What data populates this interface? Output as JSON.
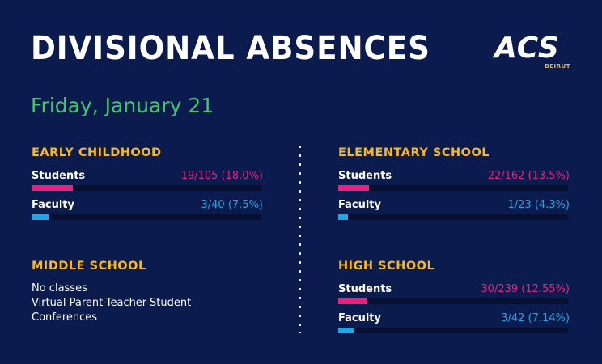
{
  "header": {
    "title": "DIVISIONAL ABSENCES",
    "logo_text": "ACS",
    "logo_subtext": "BEIRUT",
    "date": "Friday, January 21"
  },
  "colors": {
    "background": "#0c1b4d",
    "section_title": "#f9b81c",
    "date": "#3ec96e",
    "students": "#ee1e7c",
    "faculty": "#1ba8e8",
    "track": "#07102e"
  },
  "sections": {
    "early_childhood": {
      "title": "EARLY CHILDHOOD",
      "students": {
        "label": "Students",
        "value": "19/105 (18.0%)",
        "percent": 18.0
      },
      "faculty": {
        "label": "Faculty",
        "value": "3/40 (7.5%)",
        "percent": 7.5
      }
    },
    "elementary": {
      "title": "ELEMENTARY SCHOOL",
      "students": {
        "label": "Students",
        "value": "22/162 (13.5%)",
        "percent": 13.5
      },
      "faculty": {
        "label": "Faculty",
        "value": "1/23 (4.3%)",
        "percent": 4.3
      }
    },
    "middle": {
      "title": "MIDDLE SCHOOL",
      "note_lines": [
        "No classes",
        "Virtual Parent-Teacher-Student",
        "Conferences"
      ]
    },
    "high": {
      "title": "HIGH SCHOOL",
      "students": {
        "label": "Students",
        "value": "30/239 (12.55%)",
        "percent": 12.55
      },
      "faculty": {
        "label": "Faculty",
        "value": "3/42 (7.14%)",
        "percent": 7.14
      }
    }
  }
}
